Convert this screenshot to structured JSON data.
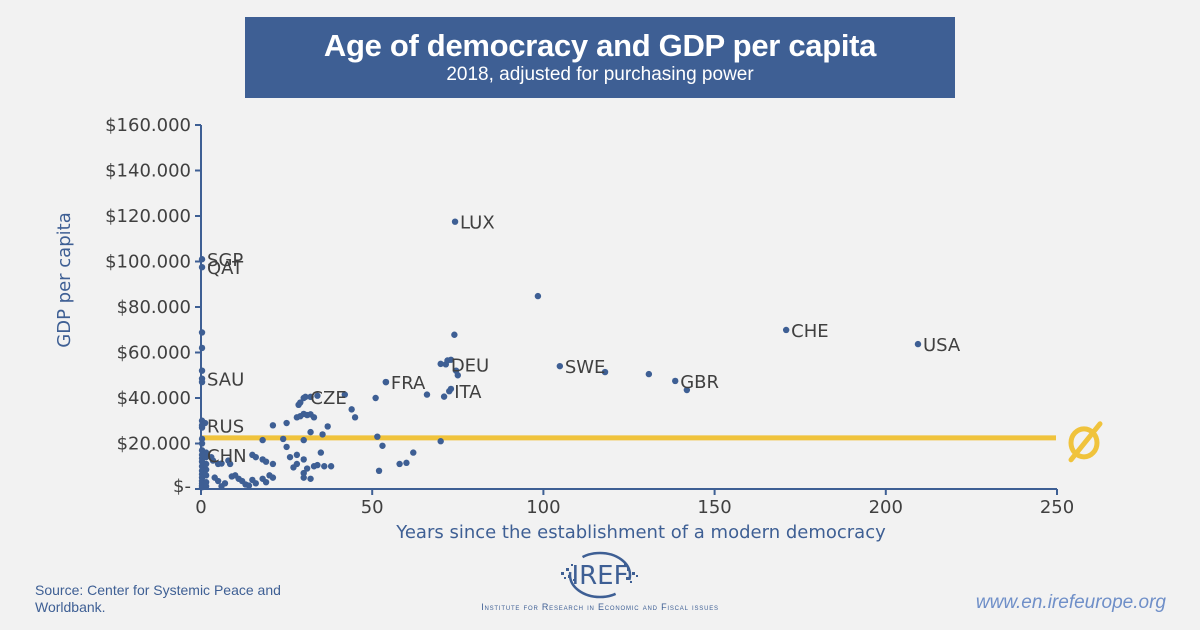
{
  "header": {
    "title": "Age of democracy and GDP per capita",
    "subtitle": "2018, adjusted for purchasing power"
  },
  "footer": {
    "source_line1": "Source: Center for Systemic Peace and",
    "source_line2": "Worldbank.",
    "logo_text": "IREF",
    "institute_name": "Institute for Research in Economic and Fiscal issues",
    "website": "www.en.irefeurope.org"
  },
  "colors": {
    "title_bg": "#3e5f94",
    "points": "#3e5f94",
    "average_line": "#f0c33c",
    "axis": "#3e5f94",
    "text": "#404040"
  },
  "chart_data": {
    "type": "scatter",
    "title": "Age of democracy and GDP per capita",
    "subtitle": "2018, adjusted for purchasing power",
    "xlabel": "Years since the establishment of a modern democracy",
    "ylabel": "GDP per capita",
    "xlim": [
      0,
      250
    ],
    "ylim": [
      0,
      160000
    ],
    "x_ticks": [
      0,
      50,
      100,
      150,
      200,
      250
    ],
    "x_tick_labels": [
      "0",
      "50",
      "100",
      "150",
      "200",
      "250"
    ],
    "y_ticks": [
      0,
      20000,
      40000,
      60000,
      80000,
      100000,
      120000,
      140000,
      160000
    ],
    "y_tick_labels": [
      "$-",
      "$20.000",
      "$40.000",
      "$60.000",
      "$80.000",
      "$100.000",
      "$120.000",
      "$140.000",
      "$160.000"
    ],
    "grid": false,
    "average_line": {
      "y": 22500,
      "symbol": "Ø",
      "label": "average"
    },
    "labeled_points": [
      {
        "label": "SGP",
        "x": 0.3,
        "y": 101000
      },
      {
        "label": "QAT",
        "x": 0.3,
        "y": 97500
      },
      {
        "label": "SAU",
        "x": 0.3,
        "y": 48500
      },
      {
        "label": "RUS",
        "x": 0.3,
        "y": 28000
      },
      {
        "label": "CHN",
        "x": 0.3,
        "y": 15000
      },
      {
        "label": "CZE",
        "x": 30.5,
        "y": 40500
      },
      {
        "label": "FRA",
        "x": 54,
        "y": 47000
      },
      {
        "label": "LUX",
        "x": 74.2,
        "y": 117500
      },
      {
        "label": "DEU",
        "x": 71.5,
        "y": 54800
      },
      {
        "label": "ITA",
        "x": 72.5,
        "y": 43000
      },
      {
        "label": "SWE",
        "x": 104.8,
        "y": 54000
      },
      {
        "label": "GBR",
        "x": 138.5,
        "y": 47500
      },
      {
        "label": "CHE",
        "x": 170.9,
        "y": 69900
      },
      {
        "label": "USA",
        "x": 209.4,
        "y": 63700
      }
    ],
    "points": [
      [
        0.3,
        68800
      ],
      [
        0.3,
        62000
      ],
      [
        0.3,
        52000
      ],
      [
        0.3,
        47000
      ],
      [
        0.3,
        30000
      ],
      [
        0.3,
        27000
      ],
      [
        1.2,
        29000
      ],
      [
        0.3,
        22000
      ],
      [
        0.3,
        20000
      ],
      [
        0.3,
        17000
      ],
      [
        0.3,
        13500
      ],
      [
        0.3,
        12000
      ],
      [
        0.3,
        10000
      ],
      [
        0.3,
        8000
      ],
      [
        0.3,
        6500
      ],
      [
        0.3,
        5000
      ],
      [
        0.3,
        3500
      ],
      [
        0.3,
        2500
      ],
      [
        0.3,
        1500
      ],
      [
        0.3,
        800
      ],
      [
        1.5,
        16000
      ],
      [
        1.5,
        14000
      ],
      [
        1.5,
        11000
      ],
      [
        1.5,
        8500
      ],
      [
        1.5,
        6000
      ],
      [
        1.5,
        3000
      ],
      [
        1.5,
        1200
      ],
      [
        3,
        14000
      ],
      [
        3.5,
        12500
      ],
      [
        5,
        11000
      ],
      [
        6,
        11200
      ],
      [
        8,
        12500
      ],
      [
        8.5,
        11000
      ],
      [
        4,
        5000
      ],
      [
        5,
        3500
      ],
      [
        6,
        1200
      ],
      [
        7,
        2500
      ],
      [
        9,
        5500
      ],
      [
        10,
        6000
      ],
      [
        11,
        4500
      ],
      [
        12,
        3500
      ],
      [
        13,
        2000
      ],
      [
        14,
        1500
      ],
      [
        15,
        4000
      ],
      [
        16,
        2500
      ],
      [
        18,
        4500
      ],
      [
        19,
        3000
      ],
      [
        20,
        6000
      ],
      [
        21,
        5000
      ],
      [
        15,
        15000
      ],
      [
        16,
        14000
      ],
      [
        18,
        13000
      ],
      [
        19,
        12000
      ],
      [
        21,
        11000
      ],
      [
        18,
        21500
      ],
      [
        21,
        28000
      ],
      [
        24,
        22000
      ],
      [
        25,
        18500
      ],
      [
        25,
        29000
      ],
      [
        28,
        31500
      ],
      [
        28.5,
        37000
      ],
      [
        29,
        38000
      ],
      [
        30,
        40000
      ],
      [
        32,
        40500
      ],
      [
        34,
        41000
      ],
      [
        29,
        32000
      ],
      [
        30,
        33000
      ],
      [
        31,
        32500
      ],
      [
        32,
        32800
      ],
      [
        33,
        31500
      ],
      [
        37,
        27500
      ],
      [
        35.5,
        24000
      ],
      [
        32,
        25000
      ],
      [
        30,
        21500
      ],
      [
        28,
        15000
      ],
      [
        30,
        13000
      ],
      [
        26,
        14000
      ],
      [
        28,
        11000
      ],
      [
        30,
        7000
      ],
      [
        31,
        9000
      ],
      [
        27,
        9500
      ],
      [
        33,
        10000
      ],
      [
        36,
        10000
      ],
      [
        38,
        10000
      ],
      [
        30,
        5000
      ],
      [
        32,
        4500
      ],
      [
        34,
        10500
      ],
      [
        35,
        16000
      ],
      [
        42,
        41500
      ],
      [
        44,
        35000
      ],
      [
        45,
        31500
      ],
      [
        51,
        40000
      ],
      [
        54,
        47000
      ],
      [
        51.5,
        23000
      ],
      [
        53,
        19000
      ],
      [
        52,
        8000
      ],
      [
        58,
        11000
      ],
      [
        62,
        16000
      ],
      [
        60,
        11500
      ],
      [
        66,
        41500
      ],
      [
        70,
        55000
      ],
      [
        72,
        56500
      ],
      [
        73,
        56800
      ],
      [
        74,
        67800
      ],
      [
        74.5,
        52000
      ],
      [
        75,
        50000
      ],
      [
        73,
        44000
      ],
      [
        71,
        40600
      ],
      [
        70,
        21000
      ],
      [
        98.4,
        84800
      ],
      [
        118,
        51400
      ],
      [
        130.8,
        50500
      ],
      [
        141.9,
        43500
      ]
    ]
  }
}
